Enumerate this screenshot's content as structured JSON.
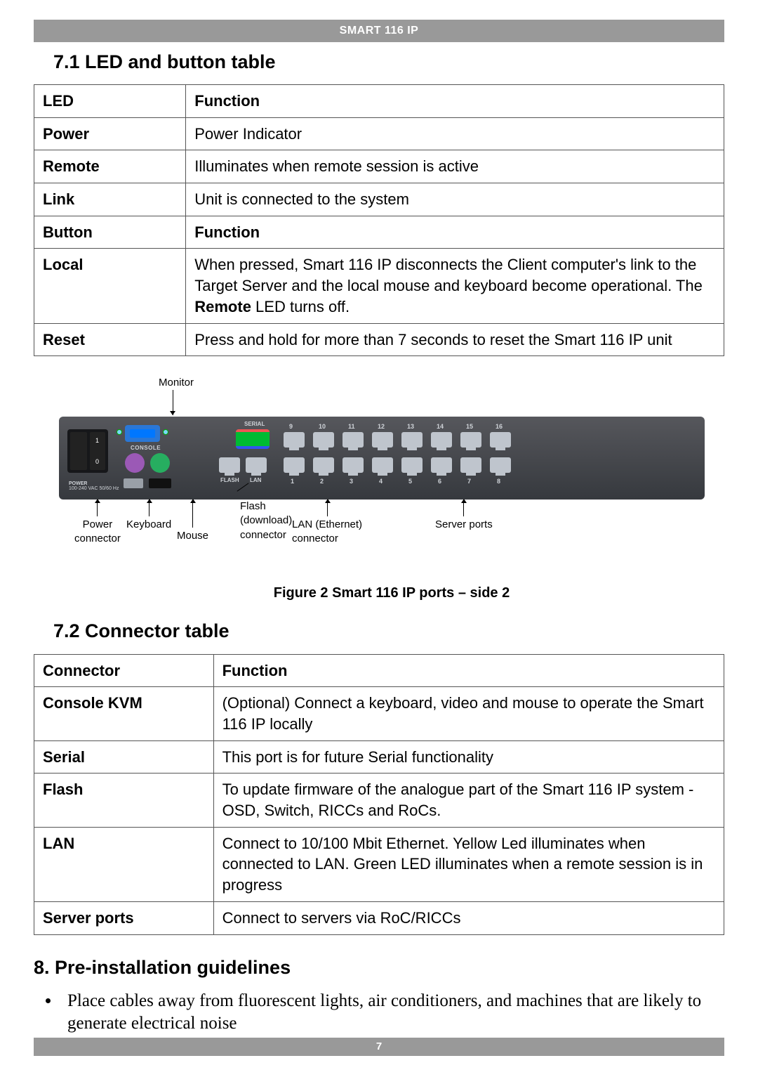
{
  "page": {
    "header": "SMART 116 IP",
    "footer_page": "7"
  },
  "section71": {
    "title": "7.1 LED and button table",
    "table": {
      "head1": {
        "c1": "LED",
        "c2": "Function"
      },
      "rows1": [
        {
          "c1": "Power",
          "c2": "Power Indicator"
        },
        {
          "c1": "Remote",
          "c2": "Illuminates when remote session is active"
        },
        {
          "c1": "Link",
          "c2": "Unit is connected to the system"
        }
      ],
      "head2": {
        "c1": "Button",
        "c2": "Function"
      },
      "rows2": [
        {
          "c1": "Local",
          "c2_a": "When pressed, Smart 116 IP disconnects the Client computer's link to the Target Server and the local mouse and keyboard become operational. The ",
          "c2_bold": "Remote",
          "c2_b": " LED turns off."
        },
        {
          "c1": "Reset",
          "c2": "Press and hold for more than 7 seconds to reset the Smart 116 IP unit"
        }
      ]
    }
  },
  "figure": {
    "caption": "Figure 2 Smart 116 IP ports – side 2",
    "labels": {
      "monitor": "Monitor",
      "power_conn": "Power\nconnector",
      "keyboard": "Keyboard",
      "mouse": "Mouse",
      "flash": "Flash\n(download)\nconnector",
      "lan": "LAN (Ethernet)\nconnector",
      "server_ports": "Server ports"
    },
    "device": {
      "console": "CONSOLE",
      "power": "POWER",
      "vac": "100-240 VAC 50/60 Hz",
      "serial": "SERIAL",
      "flash": "FLASH",
      "lan": "LAN",
      "port_top": [
        "9",
        "10",
        "11",
        "12",
        "13",
        "14",
        "15",
        "16"
      ],
      "port_bot": [
        "1",
        "2",
        "3",
        "4",
        "5",
        "6",
        "7",
        "8"
      ]
    }
  },
  "section72": {
    "title": "7.2 Connector table",
    "table": {
      "head": {
        "c1": "Connector",
        "c2": "Function"
      },
      "rows": [
        {
          "c1": "Console KVM",
          "c2": "(Optional) Connect a keyboard, video and mouse to operate the Smart 116 IP locally"
        },
        {
          "c1": "Serial",
          "c2": "This port is for future Serial functionality"
        },
        {
          "c1": "Flash",
          "c2": "To update firmware of the analogue part of the Smart 116 IP system - OSD, Switch, RICCs and RoCs."
        },
        {
          "c1": "LAN",
          "c2": "Connect to 10/100 Mbit Ethernet. Yellow Led illuminates when connected to LAN. Green LED illuminates when a remote session is in progress"
        },
        {
          "c1": "Server ports",
          "c2": "Connect to servers via RoC/RICCs"
        }
      ]
    }
  },
  "section8": {
    "title": "8. Pre-installation guidelines",
    "bullets": [
      "Place cables away from fluorescent lights, air conditioners, and machines that are likely to generate electrical noise"
    ]
  }
}
